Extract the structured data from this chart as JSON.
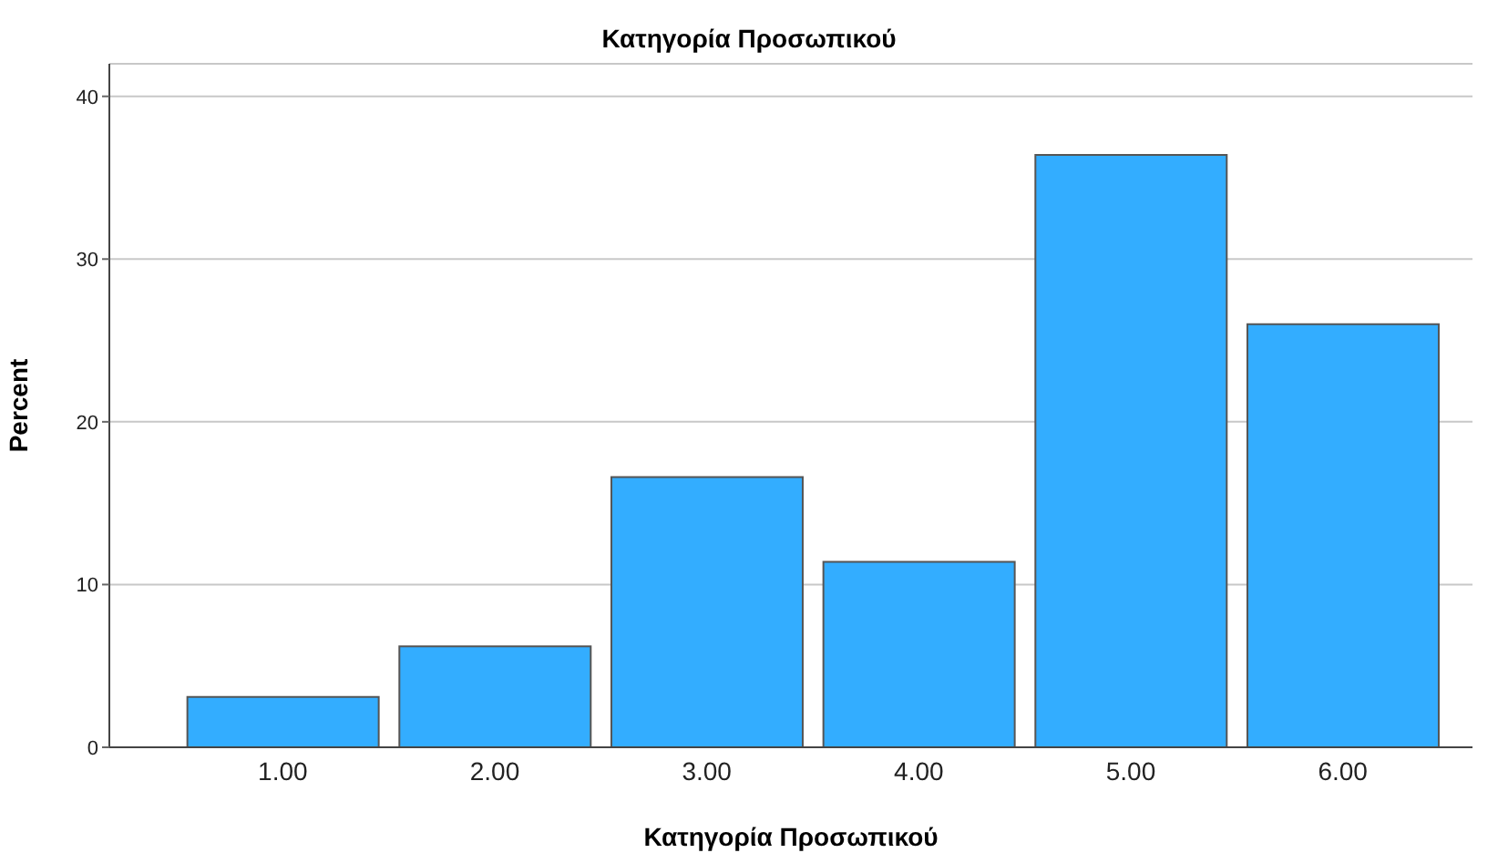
{
  "chart_data": {
    "type": "bar",
    "title": "Κατηγορία Προσωπικού",
    "xlabel": "Κατηγορία Προσωπικού",
    "ylabel": "Percent",
    "categories": [
      "1.00",
      "2.00",
      "3.00",
      "4.00",
      "5.00",
      "6.00"
    ],
    "values": [
      3.1,
      6.2,
      16.6,
      11.4,
      36.4,
      26.0
    ],
    "color": "#33adff",
    "ylim": [
      0,
      42
    ],
    "yticks": [
      0,
      10,
      20,
      30,
      40
    ],
    "grid": "y"
  }
}
